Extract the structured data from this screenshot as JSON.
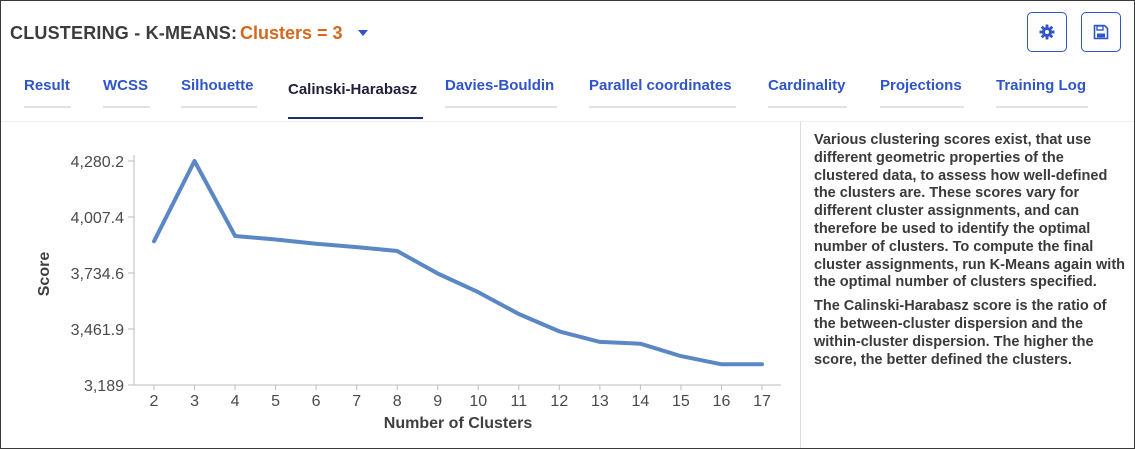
{
  "header": {
    "title": "CLUSTERING - K-MEANS:",
    "clusters_label": "Clusters = 3",
    "caret_icon": "caret-down-icon",
    "settings_icon": "gear-icon",
    "save_icon": "floppy-disk-icon"
  },
  "tabs": [
    {
      "label": "Result",
      "active": false
    },
    {
      "label": "WCSS",
      "active": false
    },
    {
      "label": "Silhouette",
      "active": false
    },
    {
      "label": "Calinski-Harabasz",
      "active": true
    },
    {
      "label": "Davies-Bouldin",
      "active": false
    },
    {
      "label": "Parallel coordinates",
      "active": false
    },
    {
      "label": "Cardinality",
      "active": false
    },
    {
      "label": "Projections",
      "active": false
    },
    {
      "label": "Training Log",
      "active": false
    }
  ],
  "description": {
    "p1": "Various clustering scores exist, that use different geometric properties of the clustered data, to assess how well-defined the clusters are. These scores vary for different cluster assignments, and can therefore be used to identify the optimal number of clusters. To compute the final cluster assignments, run K-Means again with the optimal number of clusters specified.",
    "p2": "The Calinski-Harabasz score is the ratio of the between-cluster dispersion and the within-cluster dispersion. The higher the score, the better defined the clusters."
  },
  "colors": {
    "accent": "#2f55c6",
    "clusters": "#d2691e",
    "line": "#5b87c4"
  },
  "chart_data": {
    "type": "line",
    "title": "",
    "xlabel": "Number of Clusters",
    "ylabel": "Score",
    "x": [
      2,
      3,
      4,
      5,
      6,
      7,
      8,
      9,
      10,
      11,
      12,
      13,
      14,
      15,
      16,
      17
    ],
    "series": [
      {
        "values": [
          3889,
          4280,
          3915,
          3898,
          3877,
          3861,
          3842,
          3732,
          3641,
          3535,
          3450,
          3399,
          3390,
          3330,
          3290,
          3290
        ]
      }
    ],
    "ylim": [
      3189,
      4280.2
    ],
    "yticks": [
      "4,280.2",
      "4,007.4",
      "3,734.6",
      "3,461.9",
      "3,189"
    ],
    "grid": false,
    "legend": "none"
  }
}
